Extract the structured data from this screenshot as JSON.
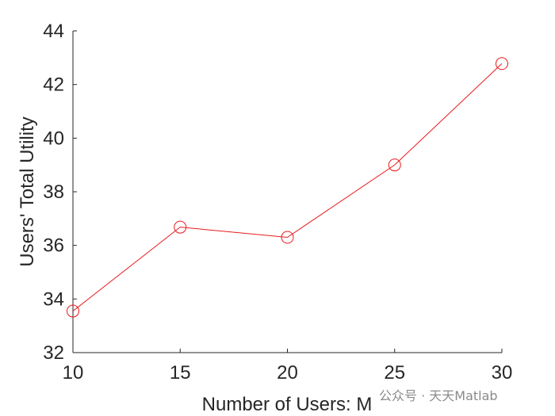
{
  "chart_data": {
    "type": "line",
    "title": "",
    "xlabel": "Number of Users: M",
    "ylabel": "Users' Total Utility",
    "xlim": [
      10,
      30
    ],
    "ylim": [
      32,
      44
    ],
    "x_ticks": [
      10,
      15,
      20,
      25,
      30
    ],
    "y_ticks": [
      32,
      34,
      36,
      38,
      40,
      42,
      44
    ],
    "grid": false,
    "legend": "none",
    "series": [
      {
        "color": "#e8191b",
        "marker": "circle",
        "x": [
          10,
          15,
          20,
          25,
          30
        ],
        "y": [
          33.55,
          36.68,
          36.3,
          39.0,
          42.78
        ]
      }
    ]
  },
  "watermark": {
    "text": "公众号 · 天天Matlab"
  }
}
